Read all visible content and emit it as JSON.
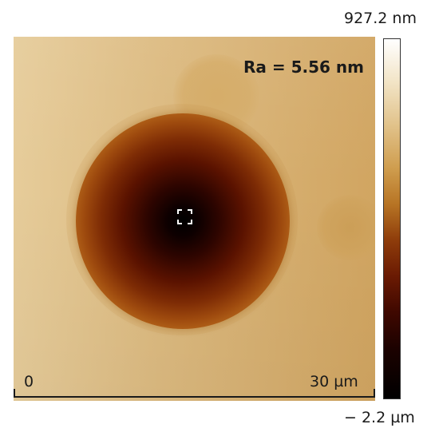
{
  "image": {
    "roughness_label": "Ra = 5.56 nm"
  },
  "scale_bar": {
    "start_label": "0",
    "end_label": "30 µm"
  },
  "colorbar": {
    "max_label": "927.2 nm",
    "min_label": "− 2.2 µm",
    "colormap": [
      "#ffffff",
      "#e1c28a",
      "#cf9d4e",
      "#8e3c0a",
      "#3f0800",
      "#000000"
    ]
  }
}
